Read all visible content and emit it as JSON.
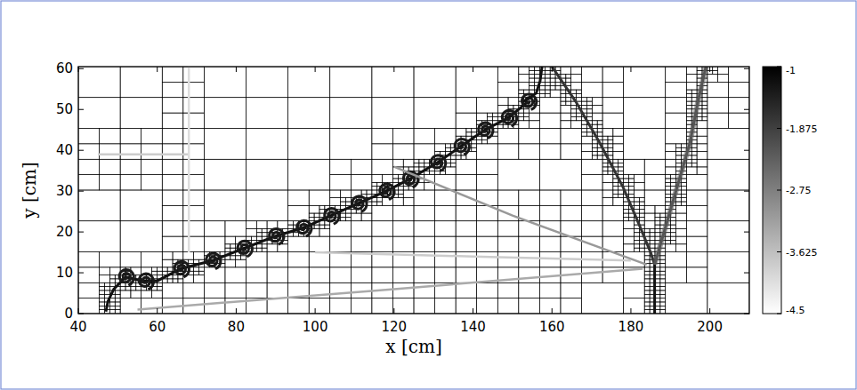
{
  "chart_data": {
    "type": "heatmap",
    "x_label": "x [cm]",
    "y_label": "y [cm]",
    "xlim": [
      40,
      210
    ],
    "ylim": [
      0,
      60.5
    ],
    "xticks": [
      40,
      60,
      80,
      100,
      120,
      140,
      160,
      180,
      200
    ],
    "yticks": [
      0,
      10,
      20,
      30,
      40,
      50,
      60
    ],
    "grid": true,
    "colorbar": {
      "range": [
        -4.5,
        -1
      ],
      "ticks": [
        -1,
        -1.875,
        -2.75,
        -3.625,
        -4.5
      ],
      "colors": [
        "#ffffff",
        "#000000"
      ]
    },
    "series": [
      {
        "type": "line",
        "color": "#111111",
        "line_style": "solid",
        "x": [
          47,
          47.5,
          49,
          52,
          56,
          60,
          66,
          74,
          82,
          90,
          97,
          104,
          111,
          118,
          124,
          131,
          137,
          143,
          149,
          154
        ],
        "values": [
          0.5,
          3,
          6,
          9,
          8,
          8,
          11,
          13,
          16,
          19,
          21,
          24,
          27,
          30,
          33,
          37,
          41,
          45,
          48,
          52
        ]
      },
      {
        "type": "scatter",
        "color": "#1a1a1a",
        "marker": "spiral",
        "x": [
          52,
          57,
          66,
          74,
          82,
          90,
          97,
          104,
          111,
          118,
          124,
          131,
          137,
          143,
          149,
          154
        ],
        "values": [
          9,
          8,
          11,
          13,
          16,
          19,
          21,
          24,
          27,
          30,
          33,
          37,
          41,
          45,
          48,
          52
        ]
      },
      {
        "type": "line",
        "color": "#111111",
        "line_style": "solid",
        "x": [
          153,
          156,
          157,
          157.5
        ],
        "values": [
          52,
          54,
          57,
          60.5
        ]
      },
      {
        "type": "line",
        "color": "#333333",
        "line_style": "solid",
        "x": [
          160,
          166,
          172,
          178,
          182,
          185,
          186
        ],
        "values": [
          60.5,
          52,
          42,
          31,
          22,
          15,
          12
        ]
      },
      {
        "type": "line",
        "color": "#111111",
        "line_style": "solid",
        "x": [
          186,
          186
        ],
        "values": [
          0,
          12
        ]
      },
      {
        "type": "line",
        "color": "#555555",
        "line_style": "double",
        "x": [
          186,
          189,
          192,
          195,
          197,
          199
        ],
        "values": [
          12,
          22,
          32,
          42,
          52,
          60.5
        ]
      },
      {
        "type": "line",
        "color": "#aaaaaa",
        "line_style": "solid",
        "x": [
          55,
          120,
          183
        ],
        "values": [
          1,
          6,
          11
        ]
      },
      {
        "type": "line",
        "color": "#999999",
        "line_style": "solid",
        "x": [
          120,
          150,
          184
        ],
        "values": [
          36,
          24,
          12
        ]
      },
      {
        "type": "line",
        "color": "#cccccc",
        "line_style": "solid",
        "x": [
          100,
          140,
          180
        ],
        "values": [
          15,
          14,
          13
        ]
      },
      {
        "type": "line",
        "color": "#cccccc",
        "line_style": "solid",
        "x": [
          45,
          68
        ],
        "values": [
          39,
          39
        ]
      },
      {
        "type": "line",
        "color": "#dddddd",
        "line_style": "solid",
        "x": [
          68,
          68
        ],
        "values": [
          15,
          60.5
        ]
      }
    ]
  }
}
